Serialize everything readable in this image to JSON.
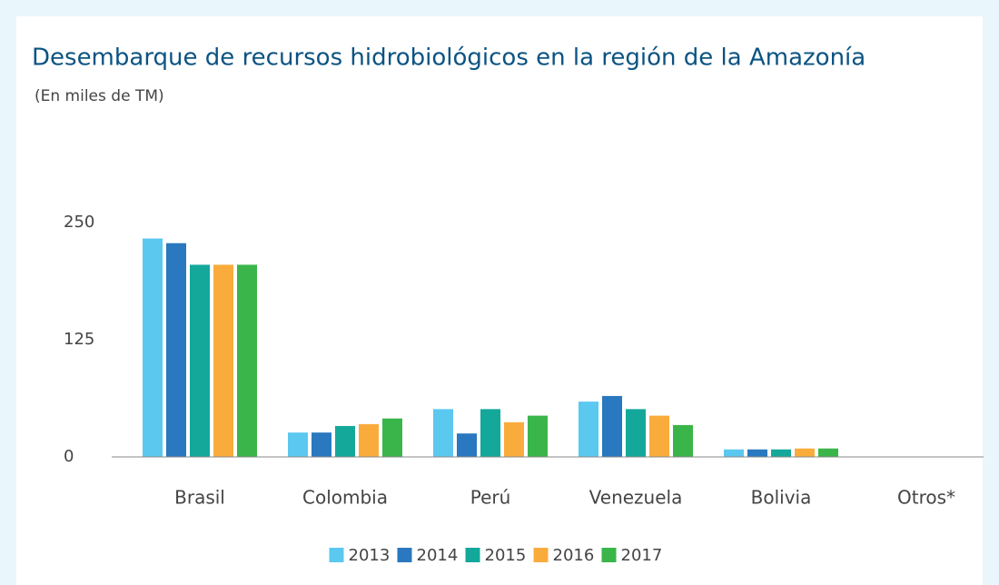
{
  "chart_data": {
    "type": "bar",
    "title": "Desembarque de recursos hidrobiológicos en la región de la Amazonía",
    "subtitle": "(En miles de TM)",
    "categories": [
      "Brasil",
      "Colombia",
      "Perú",
      "Venezuela",
      "Bolivia",
      "Otros*"
    ],
    "series": [
      {
        "name": "2013",
        "color": "#5bc8f0",
        "values": [
          233,
          26,
          51,
          59,
          8,
          0
        ]
      },
      {
        "name": "2014",
        "color": "#2a78bf",
        "values": [
          228,
          26,
          25,
          65,
          8,
          0
        ]
      },
      {
        "name": "2015",
        "color": "#14a89a",
        "values": [
          205,
          33,
          51,
          51,
          8,
          0
        ]
      },
      {
        "name": "2016",
        "color": "#f9ac3c",
        "values": [
          205,
          35,
          37,
          44,
          9,
          0
        ]
      },
      {
        "name": "2017",
        "color": "#3ab54a",
        "values": [
          205,
          41,
          44,
          34,
          9,
          0
        ]
      }
    ],
    "ylim": [
      0,
      250
    ],
    "yticks": [
      0,
      125,
      250
    ],
    "grid": false,
    "legend": "bottom"
  }
}
